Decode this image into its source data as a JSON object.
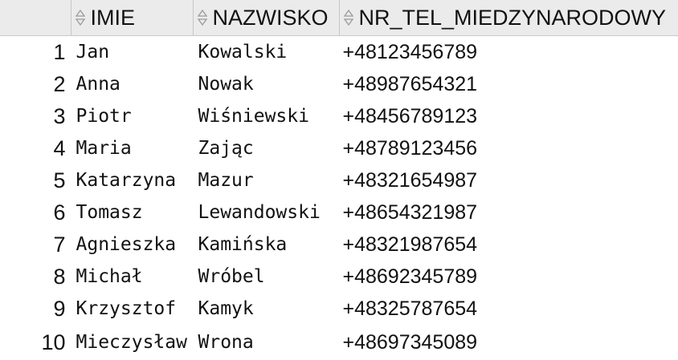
{
  "grid": {
    "columns": [
      {
        "label": "IMIE",
        "icon": "sort-icon"
      },
      {
        "label": "NAZWISKO",
        "icon": "sort-icon"
      },
      {
        "label": "NR_TEL_MIEDZYNARODOWY",
        "icon": "sort-icon"
      }
    ],
    "rows": [
      {
        "n": "1",
        "imie": "Jan",
        "nazwisko": "Kowalski",
        "tel": "+48123456789"
      },
      {
        "n": "2",
        "imie": "Anna",
        "nazwisko": "Nowak",
        "tel": "+48987654321"
      },
      {
        "n": "3",
        "imie": "Piotr",
        "nazwisko": "Wiśniewski",
        "tel": "+48456789123"
      },
      {
        "n": "4",
        "imie": "Maria",
        "nazwisko": "Zając",
        "tel": "+48789123456"
      },
      {
        "n": "5",
        "imie": "Katarzyna",
        "nazwisko": "Mazur",
        "tel": "+48321654987"
      },
      {
        "n": "6",
        "imie": "Tomasz",
        "nazwisko": "Lewandowski",
        "tel": "+48654321987"
      },
      {
        "n": "7",
        "imie": "Agnieszka",
        "nazwisko": "Kamińska",
        "tel": "+48321987654"
      },
      {
        "n": "8",
        "imie": "Michał",
        "nazwisko": "Wróbel",
        "tel": "+48692345789"
      },
      {
        "n": "9",
        "imie": "Krzysztof",
        "nazwisko": "Kamyk",
        "tel": "+48325787654"
      },
      {
        "n": "10",
        "imie": "Mieczysław",
        "nazwisko": "Wrona",
        "tel": "+48697345089"
      }
    ],
    "colors": {
      "header_bg": "#ebebeb",
      "grid_line": "#c8c8c8",
      "text": "#111111",
      "icon": "#9a9a9a"
    }
  }
}
